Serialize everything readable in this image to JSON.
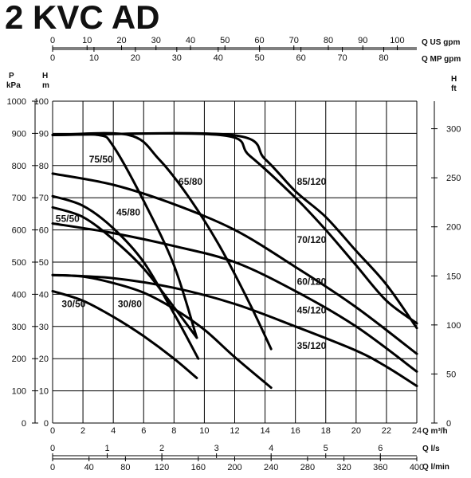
{
  "title": "2 KVC AD",
  "axes": {
    "top1_label": "Q US gpm",
    "top2_label": "Q MP gpm",
    "bottom1_label": "Q m³/h",
    "bottom2_label": "Q l/s",
    "bottom3_label": "Q l/min",
    "left_outer_label_1": "P",
    "left_outer_label_2": "kPa",
    "left_inner_label_1": "H",
    "left_inner_label_2": "m",
    "right_label_1": "H",
    "right_label_2": "ft"
  },
  "chart_data": {
    "type": "line",
    "title": "2 KVC AD",
    "xlabel": "Q m³/h",
    "ylabel": "H m",
    "xlim": [
      0,
      24
    ],
    "ylim": [
      0,
      100
    ],
    "grid": true,
    "x_ticks": [
      "0",
      "2",
      "4",
      "6",
      "8",
      "10",
      "12",
      "14",
      "16",
      "18",
      "20",
      "22",
      "24"
    ],
    "y_ticks": [
      "0",
      "10",
      "20",
      "30",
      "40",
      "50",
      "60",
      "70",
      "80",
      "90",
      "100"
    ],
    "kpa_ticks": [
      "0",
      "100",
      "200",
      "300",
      "400",
      "500",
      "600",
      "700",
      "800",
      "900",
      "1000"
    ],
    "ft_ticks": [
      "0",
      "50",
      "100",
      "150",
      "200",
      "250",
      "300"
    ],
    "usgpm_ticks": [
      "0",
      "10",
      "20",
      "30",
      "40",
      "50",
      "60",
      "70",
      "80",
      "90",
      "100"
    ],
    "mpgpm_ticks": [
      "0",
      "10",
      "20",
      "30",
      "40",
      "50",
      "60",
      "70",
      "80"
    ],
    "ls_ticks": [
      "0",
      "1",
      "2",
      "3",
      "4",
      "5",
      "6"
    ],
    "lmin_ticks": [
      "0",
      "40",
      "80",
      "120",
      "160",
      "200",
      "240",
      "280",
      "320",
      "360",
      "400"
    ],
    "series": [
      {
        "name": "30/50",
        "x": [
          0,
          2,
          4,
          6,
          8,
          9.5
        ],
        "y": [
          41,
          38,
          33,
          27,
          20,
          14
        ]
      },
      {
        "name": "30/80",
        "x": [
          0,
          2,
          4,
          6,
          8,
          10,
          12,
          14.4
        ],
        "y": [
          46,
          45.5,
          43.5,
          40.5,
          35.5,
          29,
          20.5,
          11
        ]
      },
      {
        "name": "35/120",
        "x": [
          0,
          4,
          8,
          12,
          16,
          20,
          22,
          24
        ],
        "y": [
          46,
          45,
          42,
          37,
          30,
          22.5,
          17.5,
          11.5
        ]
      },
      {
        "name": "45/80",
        "x": [
          0,
          2,
          4,
          6,
          8,
          9.5
        ],
        "y": [
          67,
          64,
          57,
          48,
          36,
          26.5
        ]
      },
      {
        "name": "45/120",
        "x": [
          0,
          4,
          8,
          12,
          16,
          20,
          24
        ],
        "y": [
          62,
          59,
          55,
          50,
          41,
          30,
          16
        ]
      },
      {
        "name": "55/50",
        "x": [
          0,
          2,
          4,
          6,
          8,
          9.6
        ],
        "y": [
          70.5,
          67.5,
          60.5,
          50,
          34,
          20
        ]
      },
      {
        "name": "60/120",
        "x": [
          0,
          4,
          8,
          12,
          16,
          20,
          24
        ],
        "y": [
          77.5,
          74,
          68,
          60,
          48.5,
          36,
          21.5
        ]
      },
      {
        "name": "65/80",
        "x": [
          0,
          5,
          7,
          9,
          11,
          13,
          14.4
        ],
        "y": [
          89.5,
          89.5,
          82,
          70,
          55,
          37,
          23
        ]
      },
      {
        "name": "70/120",
        "x": [
          0,
          11,
          13,
          16,
          18,
          20,
          22,
          24
        ],
        "y": [
          89.5,
          89.5,
          83,
          70,
          60,
          49,
          38,
          31
        ]
      },
      {
        "name": "75/50",
        "x": [
          0,
          3,
          4,
          6,
          8,
          9.5
        ],
        "y": [
          89.5,
          89.5,
          86,
          69,
          49,
          26.5
        ]
      },
      {
        "name": "85/120",
        "x": [
          0,
          11.8,
          14,
          16,
          18,
          20,
          22,
          24
        ],
        "y": [
          89.5,
          89.5,
          82,
          72,
          64,
          53.5,
          43,
          29.5
        ]
      }
    ]
  }
}
